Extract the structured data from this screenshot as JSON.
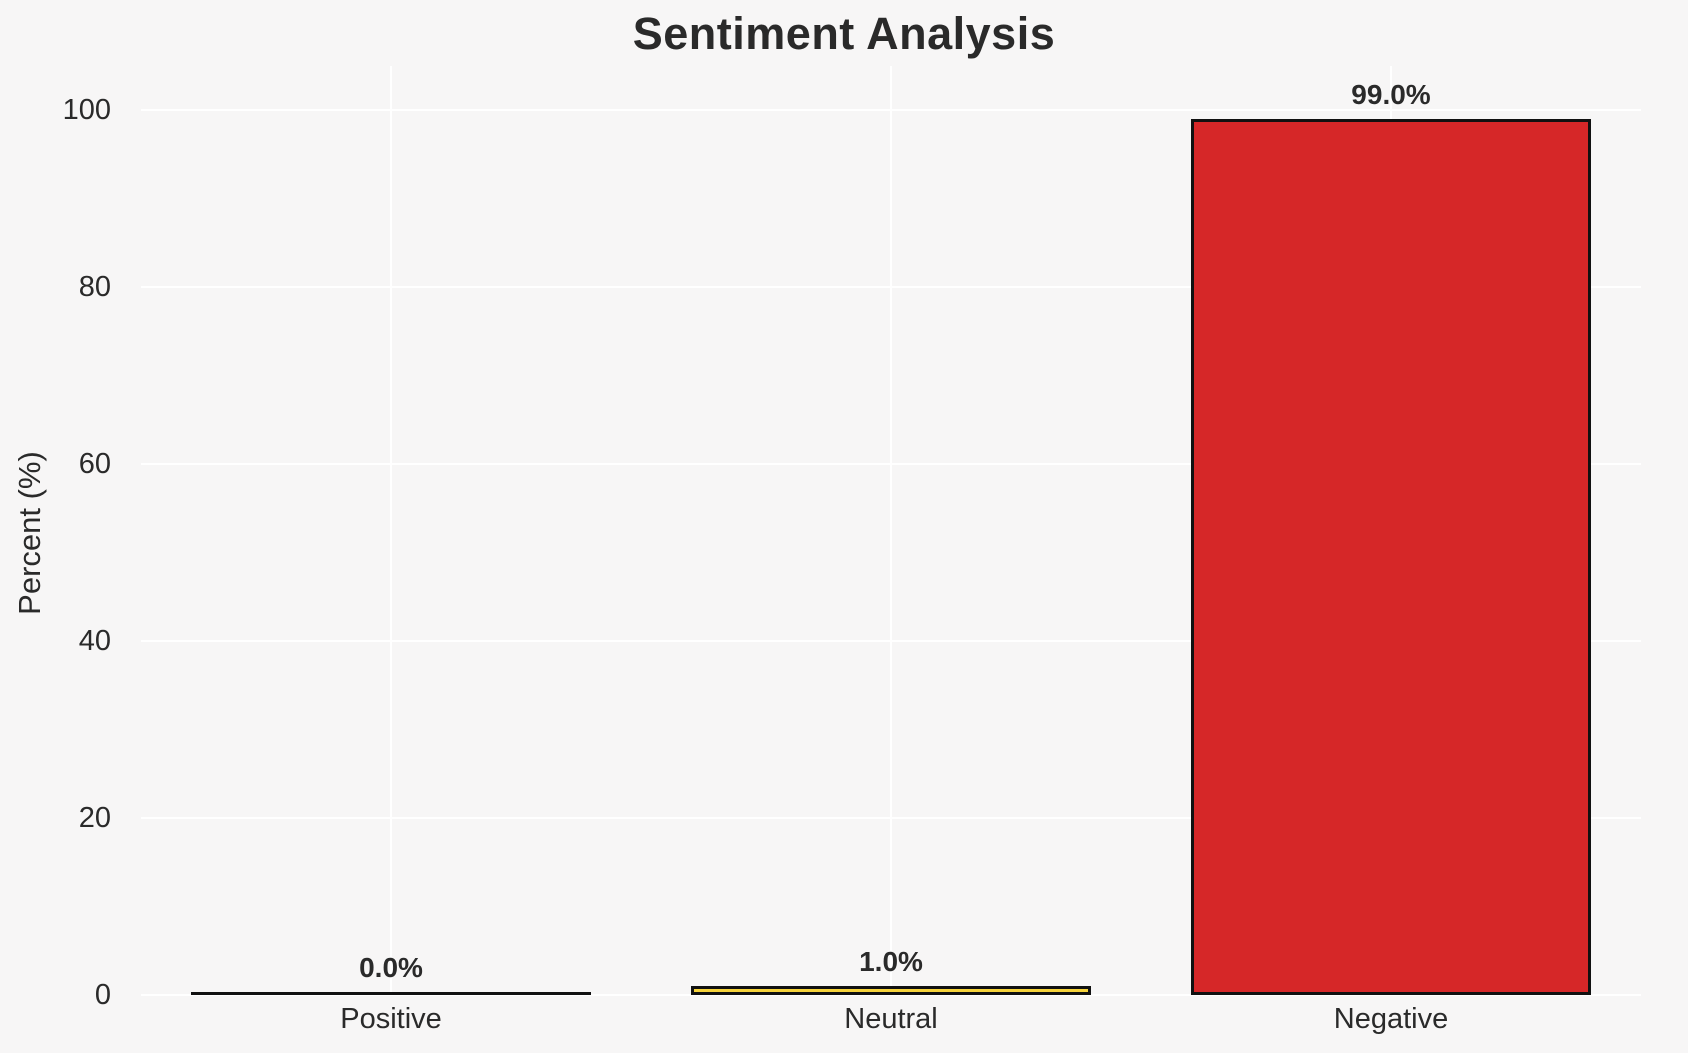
{
  "chart_data": {
    "type": "bar",
    "title": "Sentiment Analysis",
    "xlabel": "",
    "ylabel": "Percent (%)",
    "categories": [
      "Positive",
      "Neutral",
      "Negative"
    ],
    "values": [
      0.0,
      1.0,
      99.0
    ],
    "bar_labels": [
      "0.0%",
      "1.0%",
      "99.0%"
    ],
    "bar_colors": [
      "",
      "#f6d33b",
      "#d62728"
    ],
    "bar_edge_color": "#111111",
    "yticks": [
      0,
      20,
      40,
      60,
      80,
      100
    ],
    "ylim": [
      0,
      105
    ],
    "bar_width_fraction": 0.8,
    "grid": true,
    "gridline_color": "#ffffff",
    "background_color": "#f7f6f6",
    "text_color": "#2a2a2a",
    "legend": "none"
  }
}
